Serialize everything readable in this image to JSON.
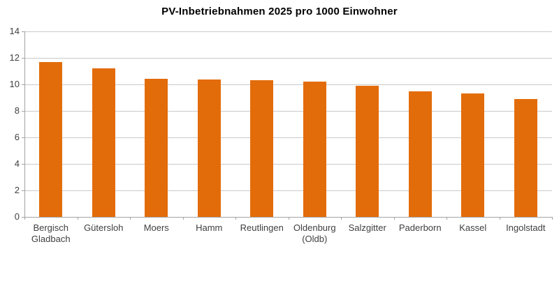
{
  "chart_data": {
    "type": "bar",
    "title": "PV-Inbetriebnahmen 2025 pro 1000 Einwohner",
    "categories": [
      "Bergisch Gladbach",
      "Gütersloh",
      "Moers",
      "Hamm",
      "Reutlingen",
      "Oldenburg (Oldb)",
      "Salzgitter",
      "Paderborn",
      "Kassel",
      "Ingolstadt"
    ],
    "category_label_lines": [
      [
        "Bergisch",
        "Gladbach"
      ],
      [
        "Gütersloh"
      ],
      [
        "Moers"
      ],
      [
        "Hamm"
      ],
      [
        "Reutlingen"
      ],
      [
        "Oldenburg",
        "(Oldb)"
      ],
      [
        "Salzgitter"
      ],
      [
        "Paderborn"
      ],
      [
        "Kassel"
      ],
      [
        "Ingolstadt"
      ]
    ],
    "values": [
      11.7,
      11.2,
      10.4,
      10.35,
      10.3,
      10.2,
      9.9,
      9.5,
      9.3,
      8.9
    ],
    "xlabel": "",
    "ylabel": "",
    "ylim": [
      0,
      14
    ],
    "yticks": [
      0,
      2,
      4,
      6,
      8,
      10,
      12,
      14
    ],
    "grid": true,
    "legend": false,
    "colors": {
      "bar": "#E36C0A",
      "gridline": "#C9C9C9",
      "axis": "#A3A3A3",
      "tick_label": "#404040",
      "title": "#000000",
      "background": "#FFFFFF"
    }
  }
}
